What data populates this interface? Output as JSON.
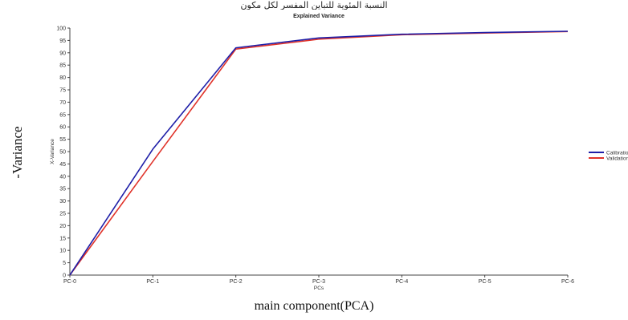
{
  "header_text": "النسبة المئوية للتباين المفسر لكل مكون",
  "outer_ylabel": "-Variance",
  "outer_xlabel": "main component(PCA)",
  "chart_data": {
    "type": "line",
    "title": "Explained Variance",
    "xlabel": "PCs",
    "ylabel": "X-Variance",
    "categories": [
      "PC-0",
      "PC-1",
      "PC-2",
      "PC-3",
      "PC-4",
      "PC-5",
      "PC-6"
    ],
    "ylim": [
      0,
      100
    ],
    "yticks": [
      0,
      5,
      10,
      15,
      20,
      25,
      30,
      35,
      40,
      45,
      50,
      55,
      60,
      65,
      70,
      75,
      80,
      85,
      90,
      95,
      100
    ],
    "grid": false,
    "legend_position": "right",
    "series": [
      {
        "name": "Calibration",
        "color": "#1f1fa8",
        "values": [
          0,
          51,
          92,
          96,
          97.5,
          98.2,
          98.7
        ]
      },
      {
        "name": "Validation",
        "color": "#e0332a",
        "values": [
          0,
          46,
          91.5,
          95.5,
          97.3,
          98.0,
          98.6
        ]
      }
    ]
  }
}
